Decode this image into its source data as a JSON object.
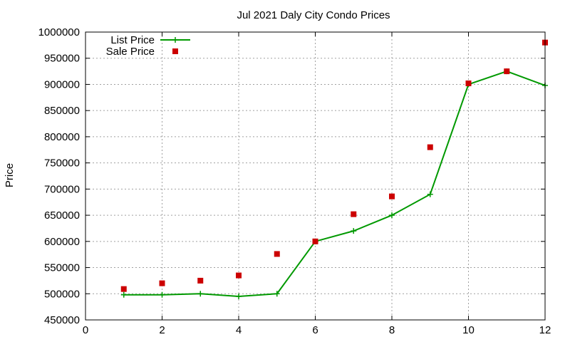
{
  "chart_data": {
    "type": "line",
    "title": "Jul 2021 Daly City Condo Prices",
    "xlabel": "",
    "ylabel": "Price",
    "xlim": [
      0,
      12
    ],
    "ylim": [
      450000,
      1000000
    ],
    "x_ticks": [
      0,
      2,
      4,
      6,
      8,
      10,
      12
    ],
    "y_ticks": [
      450000,
      500000,
      550000,
      600000,
      650000,
      700000,
      750000,
      800000,
      850000,
      900000,
      950000,
      1000000
    ],
    "grid": true,
    "legend_position": "top-left",
    "series": [
      {
        "name": "List Price",
        "style": "line+cross",
        "color": "#009900",
        "x": [
          1,
          2,
          3,
          4,
          5,
          6,
          7,
          8,
          9,
          10,
          11,
          12
        ],
        "values": [
          498000,
          498000,
          500000,
          495000,
          500000,
          600000,
          620000,
          650000,
          690000,
          900000,
          925000,
          898000
        ]
      },
      {
        "name": "Sale Price",
        "style": "square",
        "color": "#cc0000",
        "x": [
          1,
          2,
          3,
          4,
          5,
          6,
          7,
          8,
          9,
          10,
          11,
          12
        ],
        "values": [
          509000,
          520000,
          525000,
          535000,
          576000,
          600000,
          652000,
          686000,
          780000,
          902000,
          925000,
          980000
        ]
      }
    ]
  }
}
